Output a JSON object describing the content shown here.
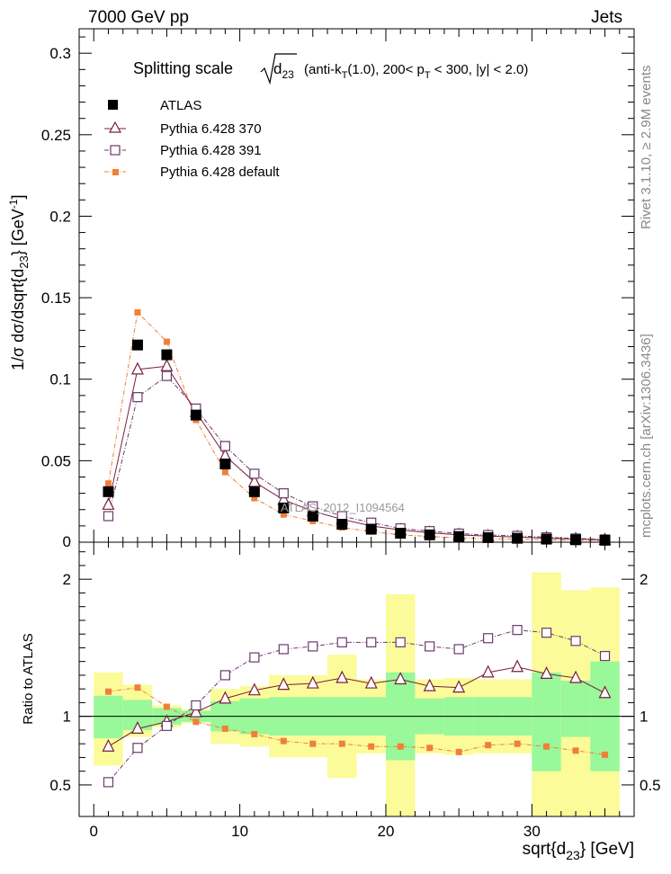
{
  "header": {
    "left": "7000 GeV pp",
    "right": "Jets"
  },
  "side": {
    "rivet": "Rivet 3.1.10, ≥ 2.9M events",
    "mcplots": "mcplots.cern.ch [arXiv:1306.3436]"
  },
  "colors": {
    "atlas": "#000000",
    "p370": "#7a1f3d",
    "p391": "#6b3a6b",
    "pdef": "#f07f3a",
    "band_green": "#99f899",
    "band_yellow": "#fbfb99"
  },
  "chart_data": [
    {
      "type": "scatter",
      "title_main": "Splitting scale",
      "title_detail": "(anti-k_T(1.0), 200< p_T < 300, |y| < 2.0)",
      "ylabel": "1/σ dσ/dsqrt{d_23} [GeV^-1]",
      "xlim": [
        -1,
        37
      ],
      "ylim": [
        0,
        0.315
      ],
      "yticks": [
        0.05,
        0.1,
        0.15,
        0.2,
        0.25,
        0.3
      ],
      "ytick_labels": [
        "0.05",
        "0.1",
        "0.15",
        "0.2",
        "0.25",
        "0.3"
      ],
      "y_zero_label": "0",
      "watermark": "ATLAS_2012_I1094564",
      "legend_position": "top-left",
      "x": [
        1,
        3,
        5,
        7,
        9,
        11,
        13,
        15,
        17,
        19,
        21,
        23,
        25,
        27,
        29,
        31,
        33,
        35
      ],
      "series": [
        {
          "name": "ATLAS",
          "values": [
            0.031,
            0.121,
            0.115,
            0.078,
            0.048,
            0.031,
            0.021,
            0.016,
            0.011,
            0.008,
            0.0055,
            0.0045,
            0.0035,
            0.0028,
            0.0024,
            0.0019,
            0.0015,
            0.0012
          ]
        },
        {
          "name": "Pythia 6.428 370",
          "values": [
            0.023,
            0.106,
            0.108,
            0.08,
            0.053,
            0.037,
            0.026,
            0.019,
            0.014,
            0.01,
            0.0075,
            0.0058,
            0.0045,
            0.0037,
            0.0032,
            0.0025,
            0.0019,
            0.0014
          ]
        },
        {
          "name": "Pythia 6.428 391",
          "values": [
            0.016,
            0.089,
            0.102,
            0.082,
            0.059,
            0.042,
            0.03,
            0.022,
            0.016,
            0.012,
            0.0085,
            0.0068,
            0.0053,
            0.0044,
            0.0039,
            0.003,
            0.0023,
            0.0017
          ]
        },
        {
          "name": "Pythia 6.428 default",
          "values": [
            0.036,
            0.141,
            0.123,
            0.075,
            0.043,
            0.027,
            0.017,
            0.013,
            0.009,
            0.0065,
            0.0045,
            0.0035,
            0.0027,
            0.0022,
            0.0019,
            0.0015,
            0.0011,
            0.0009
          ]
        }
      ]
    },
    {
      "type": "scatter",
      "ylabel": "Ratio to ATLAS",
      "xlabel": "sqrt{d_23} [GeV]",
      "xlim": [
        -1,
        37
      ],
      "ylim": [
        0.27,
        2.27
      ],
      "yticks": [
        0.5,
        1,
        2
      ],
      "ytick_labels": [
        "0.5",
        "1",
        "2"
      ],
      "xticks": [
        0,
        10,
        20,
        30
      ],
      "xtick_labels": [
        "0",
        "10",
        "20",
        "30"
      ],
      "bins": [
        [
          0,
          2
        ],
        [
          2,
          4
        ],
        [
          4,
          6
        ],
        [
          6,
          8
        ],
        [
          8,
          10
        ],
        [
          10,
          12
        ],
        [
          12,
          14
        ],
        [
          14,
          16
        ],
        [
          16,
          18
        ],
        [
          18,
          20
        ],
        [
          20,
          22
        ],
        [
          22,
          24
        ],
        [
          24,
          26
        ],
        [
          26,
          28
        ],
        [
          28,
          30
        ],
        [
          30,
          32
        ],
        [
          32,
          34
        ],
        [
          34,
          36
        ]
      ],
      "band_stat": [
        [
          0.84,
          1.15
        ],
        [
          0.9,
          1.12
        ],
        [
          0.94,
          1.06
        ],
        [
          0.96,
          1.04
        ],
        [
          0.89,
          1.11
        ],
        [
          0.87,
          1.13
        ],
        [
          0.86,
          1.14
        ],
        [
          0.86,
          1.14
        ],
        [
          0.86,
          1.14
        ],
        [
          0.86,
          1.14
        ],
        [
          0.68,
          1.32
        ],
        [
          0.87,
          1.13
        ],
        [
          0.86,
          1.14
        ],
        [
          0.86,
          1.14
        ],
        [
          0.86,
          1.14
        ],
        [
          0.6,
          1.32
        ],
        [
          0.85,
          1.26
        ],
        [
          0.6,
          1.4
        ]
      ],
      "band_total": [
        [
          0.64,
          1.32
        ],
        [
          0.85,
          1.23
        ],
        [
          0.92,
          1.08
        ],
        [
          0.95,
          1.05
        ],
        [
          0.8,
          1.2
        ],
        [
          0.78,
          1.22
        ],
        [
          0.7,
          1.3
        ],
        [
          0.7,
          1.3
        ],
        [
          0.55,
          1.45
        ],
        [
          0.73,
          1.27
        ],
        [
          0.27,
          1.89
        ],
        [
          0.73,
          1.27
        ],
        [
          0.72,
          1.28
        ],
        [
          0.73,
          1.27
        ],
        [
          0.73,
          1.27
        ],
        [
          0.27,
          2.05
        ],
        [
          0.27,
          1.92
        ],
        [
          0.27,
          1.94
        ]
      ],
      "series": [
        {
          "name": "Pythia 6.428 370",
          "values": [
            0.78,
            0.91,
            0.96,
            1.03,
            1.13,
            1.19,
            1.23,
            1.24,
            1.28,
            1.24,
            1.27,
            1.22,
            1.21,
            1.32,
            1.36,
            1.31,
            1.28,
            1.17
          ]
        },
        {
          "name": "Pythia 6.428 391",
          "values": [
            0.52,
            0.77,
            0.93,
            1.08,
            1.3,
            1.43,
            1.49,
            1.51,
            1.54,
            1.54,
            1.54,
            1.51,
            1.49,
            1.57,
            1.63,
            1.61,
            1.55,
            1.44
          ]
        },
        {
          "name": "Pythia 6.428 default",
          "values": [
            1.18,
            1.21,
            1.07,
            0.96,
            0.91,
            0.87,
            0.82,
            0.8,
            0.8,
            0.78,
            0.78,
            0.77,
            0.74,
            0.79,
            0.8,
            0.78,
            0.75,
            0.72
          ]
        }
      ]
    }
  ]
}
